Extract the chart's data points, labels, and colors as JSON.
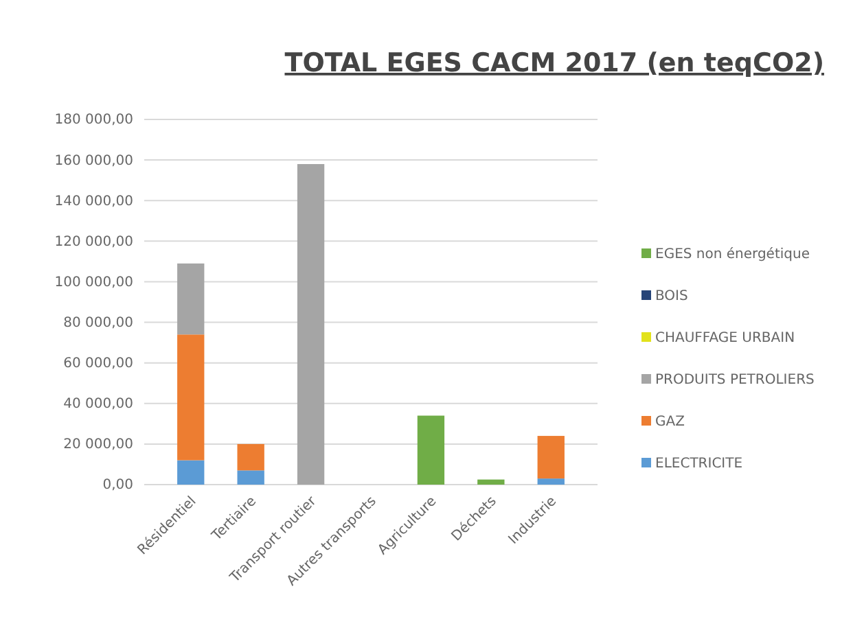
{
  "chart_data": {
    "type": "bar",
    "title": "TOTAL EGES CACM 2017 (en teqCO2)",
    "categories": [
      "Résidentiel",
      "Tertiaire",
      "Transport routier",
      "Autres transports",
      "Agriculture",
      "Déchets",
      "Industrie"
    ],
    "stacked": true,
    "series": [
      {
        "name": "ELECTRICITE",
        "color": "#5b9bd5",
        "values": [
          12000,
          7000,
          0,
          0,
          0,
          0,
          3000
        ]
      },
      {
        "name": "GAZ",
        "color": "#ed7d31",
        "values": [
          62000,
          13000,
          0,
          0,
          0,
          0,
          21000
        ]
      },
      {
        "name": "PRODUITS PETROLIERS",
        "color": "#a5a5a5",
        "values": [
          35000,
          0,
          158000,
          0,
          0,
          0,
          0
        ]
      },
      {
        "name": "CHAUFFAGE URBAIN",
        "color": "#e2e21c",
        "values": [
          0,
          0,
          0,
          0,
          0,
          0,
          0
        ]
      },
      {
        "name": "BOIS",
        "color": "#264478",
        "values": [
          0,
          0,
          0,
          0,
          0,
          0,
          0
        ]
      },
      {
        "name": "EGES non énergétique",
        "color": "#70ad47",
        "values": [
          0,
          0,
          0,
          0,
          34000,
          2500,
          0
        ]
      }
    ],
    "ylim": [
      0,
      180000
    ],
    "yticks": [
      {
        "value": 0,
        "label": "0,00"
      },
      {
        "value": 20000,
        "label": "20 000,00"
      },
      {
        "value": 40000,
        "label": "40 000,00"
      },
      {
        "value": 60000,
        "label": "60 000,00"
      },
      {
        "value": 80000,
        "label": "80 000,00"
      },
      {
        "value": 100000,
        "label": "100 000,00"
      },
      {
        "value": 120000,
        "label": "120 000,00"
      },
      {
        "value": 140000,
        "label": "140 000,00"
      },
      {
        "value": 160000,
        "label": "160 000,00"
      },
      {
        "value": 180000,
        "label": "180 000,00"
      }
    ],
    "grid": "y",
    "legend": "right"
  }
}
